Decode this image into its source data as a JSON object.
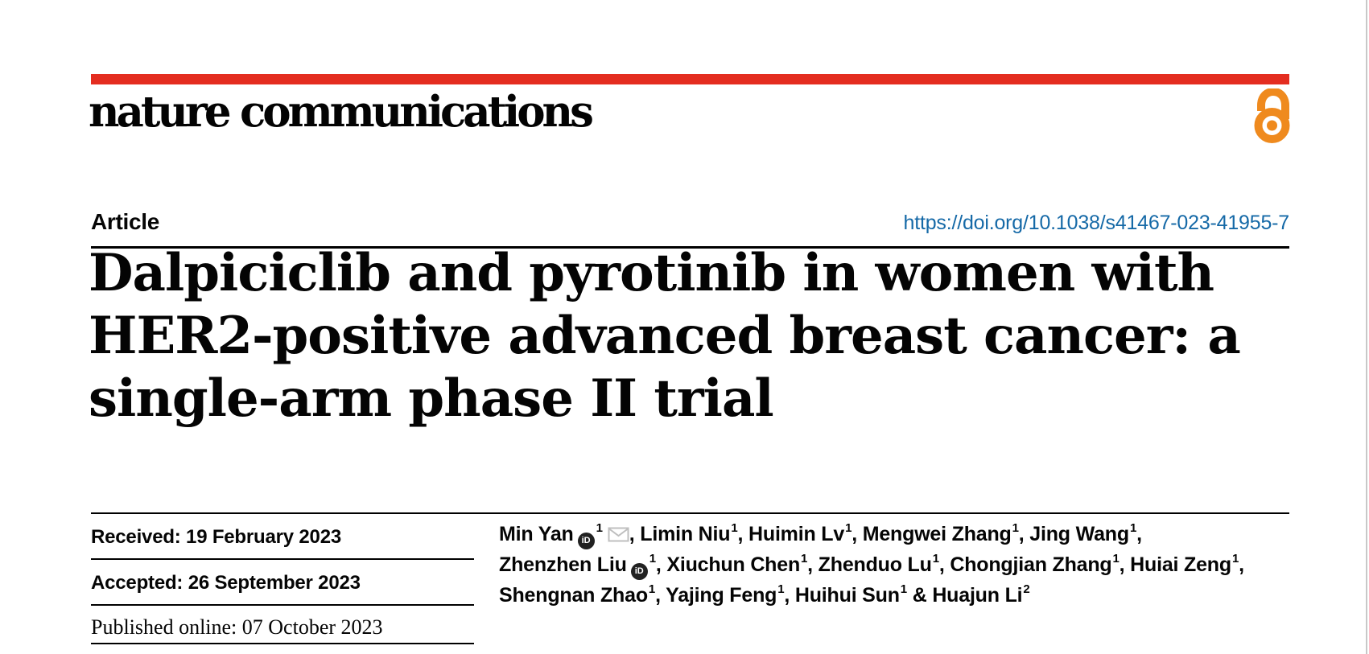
{
  "brand": {
    "journal_name": "nature communications",
    "colors": {
      "red": "#e42d20",
      "orange": "#ef8a1e",
      "link_blue": "#1569a7",
      "ink": "#050505",
      "rule_gray": "#c8c8c8",
      "icon_gray": "#bfbfbf",
      "orcid_black": "#212121"
    }
  },
  "header": {
    "article_label": "Article",
    "doi_link": "https://doi.org/10.1038/s41467-023-41955-7"
  },
  "title": {
    "line1": "Dalpiciclib and pyrotinib in women with",
    "line2": "HER2-positive advanced breast cancer: a",
    "line3": "single-arm phase II trial"
  },
  "history": {
    "received": "Received: 19 February 2023",
    "accepted": "Accepted: 26 September 2023",
    "published": "Published online: 07 October 2023"
  },
  "authors": {
    "lines": [
      [
        {
          "name": "Min Yan",
          "orcid": true,
          "sup": "1",
          "mail": true,
          "after": ", "
        },
        {
          "name": "Limin Niu",
          "sup": "1",
          "after": ", "
        },
        {
          "name": "Huimin Lv",
          "sup": "1",
          "after": ", "
        },
        {
          "name": "Mengwei Zhang",
          "sup": "1",
          "after": ", "
        },
        {
          "name": "Jing Wang",
          "sup": "1",
          "after": ","
        }
      ],
      [
        {
          "name": "Zhenzhen Liu",
          "orcid": true,
          "sup": "1",
          "after": ", "
        },
        {
          "name": "Xiuchun Chen",
          "sup": "1",
          "after": ", "
        },
        {
          "name": "Zhenduo Lu",
          "sup": "1",
          "after": ", "
        },
        {
          "name": "Chongjian Zhang",
          "sup": "1",
          "after": ", "
        },
        {
          "name": "Huiai Zeng",
          "sup": "1",
          "after": ","
        }
      ],
      [
        {
          "name": "Shengnan Zhao",
          "sup": "1",
          "after": ", "
        },
        {
          "name": "Yajing Feng",
          "sup": "1",
          "after": ", "
        },
        {
          "name": "Huihui Sun",
          "sup": "1",
          "after": " & "
        },
        {
          "name": "Huajun Li",
          "sup": "2",
          "after": ""
        }
      ]
    ]
  },
  "icons": {
    "orcid_label": "iD",
    "orcid_icon": "orcid-id-badge",
    "email_icon": "envelope-outline",
    "open_access_icon": "open-access-padlock"
  }
}
